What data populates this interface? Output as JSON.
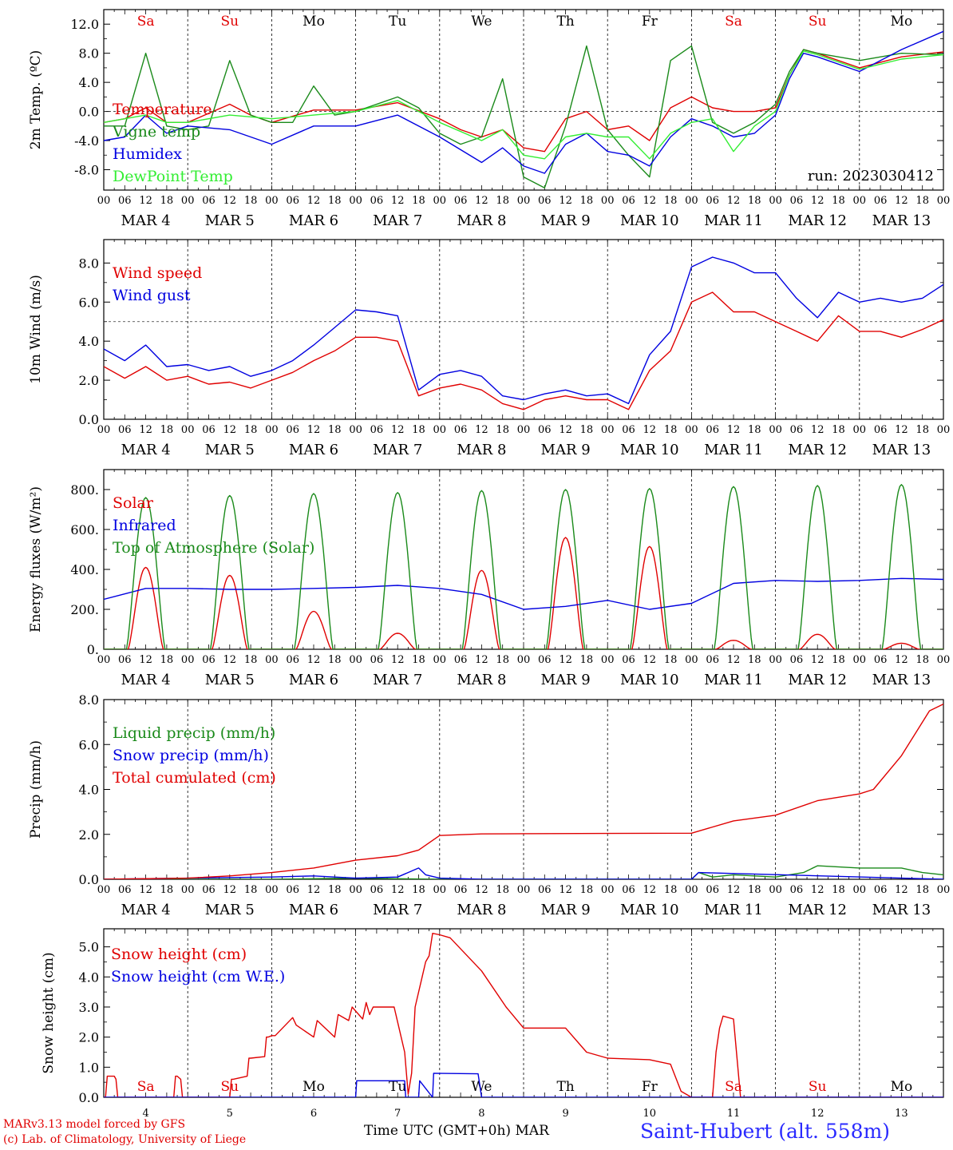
{
  "days_of_week": [
    "Sa",
    "Su",
    "Mo",
    "Tu",
    "We",
    "Th",
    "Fr",
    "Sa",
    "Su",
    "Mo"
  ],
  "weekend_color": "#e00000",
  "hour_labels": [
    "00",
    "06",
    "12",
    "18"
  ],
  "date_labels": [
    "MAR  4",
    "MAR  5",
    "MAR  6",
    "MAR  7",
    "MAR  8",
    "MAR  9",
    "MAR 10",
    "MAR 11",
    "MAR 12",
    "MAR 13"
  ],
  "bottom_day_numbers": [
    "4",
    "5",
    "6",
    "7",
    "8",
    "9",
    "10",
    "11",
    "12",
    "13"
  ],
  "footer": {
    "model": "MARv3.13 model forced by GFS",
    "lab": "(c) Lab. of Climatology, University of Liege",
    "time_axis": "Time UTC (GMT+0h) MAR",
    "station": "Saint-Hubert (alt. 558m)"
  },
  "chart_data": [
    {
      "id": "temp",
      "type": "line",
      "ylabel": "2m Temp. (ºC)",
      "ylim": [
        -10.8,
        14
      ],
      "yticks": [
        -8,
        -4,
        0,
        4,
        8,
        12
      ],
      "ytick_labels": [
        "-8.0",
        "-4.0",
        "0.0",
        "4.0",
        "8.0",
        "12.0"
      ],
      "ref_line": 0,
      "show_days": true,
      "annotation": "run: 2023030412",
      "x_start": "2023-03-04 00:00",
      "x_end": "2023-03-14 00:00",
      "x_unit": "hours since MAR 4 00 UTC",
      "series": [
        {
          "name": "Temperature",
          "color": "#e00000",
          "x": [
            0,
            6,
            12,
            18,
            24,
            36,
            42,
            48,
            60,
            72,
            84,
            96,
            102,
            108,
            114,
            120,
            126,
            132,
            138,
            144,
            150,
            156,
            162,
            168,
            174,
            180,
            186,
            192,
            196,
            200,
            204,
            216,
            228,
            240
          ],
          "y": [
            -1.5,
            -1.0,
            0.5,
            -1.5,
            -1.5,
            1.0,
            -0.5,
            -1.5,
            0.2,
            0.2,
            1.2,
            -1.0,
            -2.5,
            -3.5,
            -2.5,
            -5.0,
            -5.5,
            -1.0,
            0.0,
            -2.5,
            -2.0,
            -4.0,
            0.5,
            2.0,
            0.5,
            0.0,
            0.0,
            0.5,
            5.0,
            8.5,
            8.0,
            6.0,
            7.5,
            8.2
          ]
        },
        {
          "name": "Vigne temp",
          "color": "#1a8a1a",
          "x": [
            0,
            6,
            12,
            18,
            24,
            30,
            36,
            42,
            48,
            54,
            60,
            66,
            72,
            84,
            90,
            96,
            102,
            108,
            114,
            120,
            126,
            132,
            138,
            144,
            150,
            156,
            162,
            168,
            174,
            180,
            186,
            192,
            196,
            200,
            204,
            216,
            228,
            240
          ],
          "y": [
            -2.0,
            -2.0,
            8.0,
            -2.0,
            -2.5,
            -2.0,
            7.0,
            -0.5,
            -1.5,
            -1.5,
            3.5,
            -0.5,
            0.0,
            2.0,
            0.5,
            -3.0,
            -4.5,
            -3.5,
            4.5,
            -9.0,
            -10.5,
            -2.0,
            9.0,
            -2.5,
            -6.0,
            -9.0,
            7.0,
            9.0,
            -1.5,
            -3.0,
            -1.5,
            1.0,
            5.5,
            8.5,
            8.0,
            7.0,
            8.0,
            7.8
          ]
        },
        {
          "name": "Humidex",
          "color": "#0000e0",
          "x": [
            0,
            6,
            12,
            18,
            24,
            36,
            48,
            60,
            72,
            84,
            96,
            108,
            114,
            120,
            126,
            132,
            138,
            144,
            150,
            156,
            162,
            168,
            174,
            180,
            186,
            192,
            196,
            200,
            204,
            216,
            228,
            240
          ],
          "y": [
            -4.0,
            -3.5,
            -0.5,
            -3.0,
            -2.0,
            -2.5,
            -4.5,
            -2.0,
            -2.0,
            -0.5,
            -3.5,
            -7.0,
            -5.0,
            -7.5,
            -8.5,
            -4.5,
            -3.0,
            -5.5,
            -6.0,
            -7.5,
            -3.5,
            -1.0,
            -2.0,
            -3.5,
            -3.0,
            -0.5,
            4.5,
            8.0,
            7.5,
            5.5,
            8.5,
            11.0
          ]
        },
        {
          "name": "DewPoint Temp",
          "color": "#33ee33",
          "x": [
            0,
            6,
            12,
            18,
            24,
            36,
            48,
            60,
            72,
            84,
            96,
            108,
            114,
            120,
            126,
            132,
            138,
            144,
            150,
            156,
            162,
            168,
            174,
            180,
            186,
            192,
            196,
            200,
            204,
            216,
            228,
            240
          ],
          "y": [
            -1.5,
            -1.0,
            -0.5,
            -1.5,
            -1.5,
            -0.5,
            -1.0,
            -0.5,
            0.0,
            1.5,
            -1.5,
            -4.0,
            -2.5,
            -6.0,
            -6.5,
            -3.5,
            -3.0,
            -3.5,
            -3.5,
            -6.5,
            -3.0,
            -1.5,
            -1.0,
            -5.5,
            -2.0,
            0.0,
            5.0,
            8.3,
            7.8,
            5.8,
            7.2,
            7.8
          ]
        }
      ]
    },
    {
      "id": "wind",
      "type": "line",
      "ylabel": "10m Wind (m/s)",
      "ylim": [
        0,
        9.2
      ],
      "yticks": [
        0,
        2,
        4,
        6,
        8
      ],
      "ytick_labels": [
        "0.0",
        "2.0",
        "4.0",
        "6.0",
        "8.0"
      ],
      "ref_line": 5,
      "series": [
        {
          "name": "Wind speed",
          "color": "#e00000",
          "x": [
            0,
            6,
            12,
            18,
            24,
            30,
            36,
            42,
            48,
            54,
            60,
            66,
            72,
            78,
            84,
            90,
            96,
            102,
            108,
            114,
            120,
            126,
            132,
            138,
            144,
            150,
            156,
            162,
            168,
            174,
            180,
            186,
            192,
            198,
            204,
            210,
            216,
            222,
            228,
            234,
            240
          ],
          "y": [
            2.7,
            2.1,
            2.7,
            2.0,
            2.2,
            1.8,
            1.9,
            1.6,
            2.0,
            2.4,
            3.0,
            3.5,
            4.2,
            4.2,
            4.0,
            1.2,
            1.6,
            1.8,
            1.5,
            0.8,
            0.5,
            1.0,
            1.2,
            1.0,
            1.0,
            0.5,
            2.5,
            3.5,
            6.0,
            6.5,
            5.5,
            5.5,
            5.0,
            4.5,
            4.0,
            5.3,
            4.5,
            4.5,
            4.2,
            4.6,
            5.1
          ]
        },
        {
          "name": "Wind gust",
          "color": "#0000e0",
          "x": [
            0,
            6,
            12,
            18,
            24,
            30,
            36,
            42,
            48,
            54,
            60,
            66,
            72,
            78,
            84,
            90,
            96,
            102,
            108,
            114,
            120,
            126,
            132,
            138,
            144,
            150,
            156,
            162,
            168,
            174,
            180,
            186,
            192,
            198,
            204,
            210,
            216,
            222,
            228,
            234,
            240
          ],
          "y": [
            3.6,
            3.0,
            3.8,
            2.7,
            2.8,
            2.5,
            2.7,
            2.2,
            2.5,
            3.0,
            3.8,
            4.7,
            5.6,
            5.5,
            5.3,
            1.5,
            2.3,
            2.5,
            2.2,
            1.2,
            1.0,
            1.3,
            1.5,
            1.2,
            1.3,
            0.8,
            3.3,
            4.5,
            7.8,
            8.3,
            8.0,
            7.5,
            7.5,
            6.2,
            5.2,
            6.5,
            6.0,
            6.2,
            6.0,
            6.2,
            6.9
          ]
        }
      ]
    },
    {
      "id": "energy",
      "type": "line",
      "ylabel": "Energy fluxes (W/m²)",
      "ylim": [
        0,
        900
      ],
      "yticks": [
        0,
        200,
        400,
        600,
        800
      ],
      "ytick_labels": [
        "0.",
        "200.",
        "400.",
        "600.",
        "800."
      ],
      "series": [
        {
          "name": "Solar",
          "color": "#e00000",
          "daily_peak": [
            410,
            370,
            190,
            80,
            395,
            560,
            515,
            45,
            75,
            30
          ],
          "sunrise_hour": 7,
          "sunset_hour": 17
        },
        {
          "name": "Infrared",
          "color": "#0000e0",
          "x": [
            0,
            12,
            24,
            36,
            48,
            60,
            72,
            84,
            96,
            108,
            120,
            132,
            144,
            156,
            168,
            180,
            192,
            204,
            216,
            228,
            240
          ],
          "y": [
            250,
            305,
            305,
            300,
            300,
            305,
            310,
            320,
            305,
            275,
            200,
            215,
            245,
            200,
            230,
            330,
            345,
            340,
            345,
            355,
            350
          ]
        },
        {
          "name": "Top of Atmosphere (Solar)",
          "color": "#1a8a1a",
          "daily_peak": [
            760,
            770,
            780,
            785,
            795,
            800,
            805,
            815,
            820,
            825
          ],
          "sunrise_hour": 6.5,
          "sunset_hour": 17.5
        }
      ]
    },
    {
      "id": "precip",
      "type": "line",
      "ylabel": "Precip (mm/h)",
      "ylim": [
        0,
        8
      ],
      "yticks": [
        0,
        2,
        4,
        6,
        8
      ],
      "ytick_labels": [
        "0.0",
        "2.0",
        "4.0",
        "6.0",
        "8.0"
      ],
      "series": [
        {
          "name": "Liquid precip (mm/h)",
          "color": "#1a8a1a",
          "x": [
            0,
            48,
            72,
            96,
            120,
            168,
            170,
            174,
            180,
            192,
            200,
            204,
            216,
            228,
            234,
            240
          ],
          "y": [
            0,
            0,
            0.05,
            0,
            0,
            0,
            0.3,
            0.1,
            0.2,
            0.1,
            0.3,
            0.6,
            0.5,
            0.5,
            0.3,
            0.2
          ]
        },
        {
          "name": "Snow precip (mm/h)",
          "color": "#0000e0",
          "x": [
            0,
            48,
            60,
            72,
            84,
            90,
            92,
            96,
            108,
            168,
            170,
            240
          ],
          "y": [
            0,
            0.1,
            0.15,
            0.05,
            0.1,
            0.5,
            0.2,
            0.05,
            0,
            0,
            0.3,
            0
          ]
        },
        {
          "name": "Total cumulated (cm)",
          "color": "#e00000",
          "x": [
            0,
            24,
            36,
            48,
            60,
            72,
            84,
            90,
            96,
            108,
            120,
            144,
            168,
            180,
            192,
            204,
            216,
            220,
            228,
            236,
            240
          ],
          "y": [
            0,
            0.05,
            0.15,
            0.3,
            0.5,
            0.85,
            1.05,
            1.3,
            1.95,
            2.02,
            2.03,
            2.04,
            2.05,
            2.6,
            2.85,
            3.5,
            3.8,
            4.0,
            5.5,
            7.5,
            7.8
          ]
        }
      ]
    },
    {
      "id": "snow",
      "type": "line",
      "ylabel": "Snow height (cm)",
      "ylim": [
        0,
        5.6
      ],
      "yticks": [
        0,
        1,
        2,
        3,
        4,
        5
      ],
      "ytick_labels": [
        "0.0",
        "1.0",
        "2.0",
        "3.0",
        "4.0",
        "5.0"
      ],
      "show_days_bottom": true,
      "series": [
        {
          "name": "Snow height (cm)",
          "color": "#e00000",
          "x": [
            0,
            0.5,
            1,
            3,
            3.5,
            4,
            20,
            20.5,
            21,
            22,
            22.5,
            23,
            23.5,
            36,
            36.5,
            37,
            41,
            41.5,
            42,
            46,
            46.5,
            47,
            48,
            49,
            54,
            55,
            60,
            61,
            66,
            67,
            70,
            71,
            74,
            75,
            76,
            77,
            82,
            83,
            84,
            86,
            87,
            88,
            89,
            90,
            91,
            92,
            93,
            94,
            96,
            99,
            108,
            115,
            120,
            132,
            138,
            144,
            156,
            162,
            165,
            168,
            170,
            174,
            175,
            176,
            177,
            180,
            182,
            240
          ],
          "y": [
            0,
            0,
            0.7,
            0.7,
            0.6,
            0,
            0,
            0.7,
            0.7,
            0.6,
            0,
            0,
            0,
            0,
            0.6,
            0.6,
            0.7,
            1.3,
            1.3,
            1.35,
            2.0,
            2.0,
            2.05,
            2.05,
            2.65,
            2.4,
            2.0,
            2.55,
            2.0,
            2.75,
            2.55,
            3.0,
            2.6,
            3.15,
            2.75,
            3.0,
            3.0,
            3.0,
            2.5,
            1.5,
            0.1,
            0.8,
            3.0,
            3.5,
            4.0,
            4.5,
            4.7,
            5.45,
            5.4,
            5.3,
            4.2,
            3.0,
            2.3,
            2.3,
            1.5,
            1.3,
            1.25,
            1.1,
            0.2,
            0,
            0,
            0,
            1.5,
            2.3,
            2.7,
            2.6,
            0,
            0
          ]
        },
        {
          "name": "Snow height (cm W.E.)",
          "color": "#0000e0",
          "x": [
            0,
            72,
            72.3,
            86,
            86.3,
            90,
            90.3,
            94,
            94.3,
            107,
            108,
            240
          ],
          "y": [
            0,
            0,
            0.55,
            0.55,
            0,
            0,
            0.55,
            0,
            0.8,
            0.78,
            0,
            0
          ]
        }
      ]
    }
  ]
}
